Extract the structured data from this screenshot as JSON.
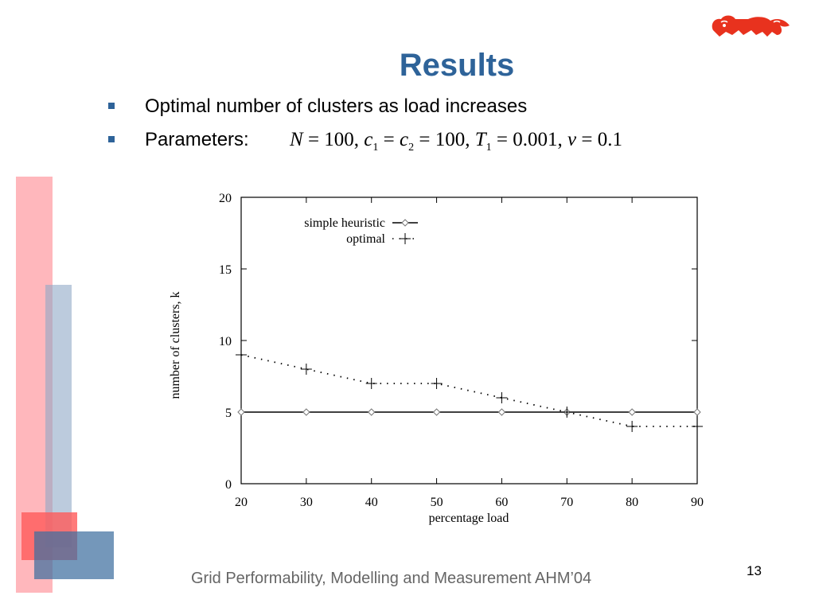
{
  "slide": {
    "title": "Results",
    "bullets": [
      "Optimal number of clusters as load increases",
      "Parameters:"
    ],
    "formula": {
      "N": "N",
      "N_value": "= 100,",
      "c": "c",
      "c1_sub": "1",
      "c2_sub": "2",
      "eq": "=",
      "c_value": "= 100,",
      "T": "T",
      "T_sub": "1",
      "T_value": "= 0.001,",
      "nu": "ν",
      "nu_value": "= 0.1"
    },
    "footer": "Grid Performability, Modelling and Measurement  AHM’04",
    "page_number": "13"
  },
  "colors": {
    "title": "#2e6399",
    "bullet": "#2e6399",
    "deco_pink": "#ff9fa6",
    "deco_blue": "#8fa9c7",
    "deco_red": "#ff5a5a",
    "deco_navy": "#3f6f9f",
    "logo": "#e8321e"
  },
  "logo_icon": "red-lion-icon",
  "chart_data": {
    "type": "line",
    "xlabel": "percentage load",
    "ylabel": "number of clusters, k",
    "xlim": [
      20,
      90
    ],
    "ylim": [
      0,
      20
    ],
    "x_ticks": [
      "20",
      "30",
      "40",
      "50",
      "60",
      "70",
      "80",
      "90"
    ],
    "y_ticks": [
      "0",
      "5",
      "10",
      "15",
      "20"
    ],
    "grid": false,
    "legend_position": "top-left",
    "x": [
      20,
      30,
      40,
      50,
      60,
      70,
      80,
      90
    ],
    "series": [
      {
        "name": "simple heuristic",
        "values": [
          5,
          5,
          5,
          5,
          5,
          5,
          5,
          5
        ],
        "style": "solid",
        "marker": "diamond"
      },
      {
        "name": "optimal",
        "values": [
          9,
          8,
          7,
          7,
          6,
          5,
          4,
          4
        ],
        "style": "dotted",
        "marker": "plus"
      }
    ]
  }
}
